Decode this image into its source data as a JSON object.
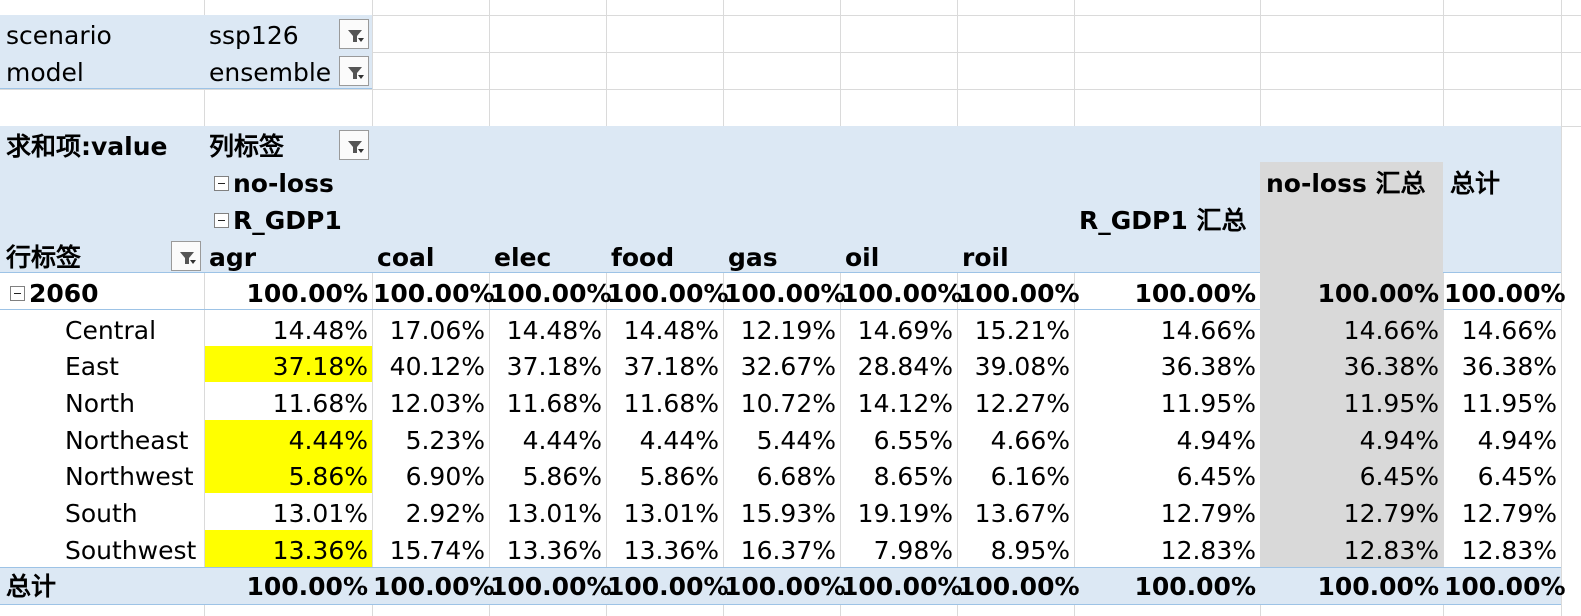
{
  "filters": [
    {
      "field": "scenario",
      "value": "ssp126"
    },
    {
      "field": "model",
      "value": "ensemble"
    }
  ],
  "pivot": {
    "value_label": "求和项:value",
    "column_labels": "列标签",
    "row_labels": "行标签",
    "level1": "no-loss",
    "level2": "R_GDP1",
    "columns": [
      "agr",
      "coal",
      "elec",
      "food",
      "gas",
      "oil",
      "roil"
    ],
    "subtotal_r_gdp1": "R_GDP1 汇总",
    "subtotal_noloss": "no-loss 汇总",
    "grand_total_col": "总计",
    "group": {
      "label": "2060",
      "values": [
        "100.00%",
        "100.00%",
        "100.00%",
        "100.00%",
        "100.00%",
        "100.00%",
        "100.00%",
        "100.00%",
        "100.00%",
        "100.00%"
      ]
    },
    "rows": [
      {
        "label": "Central",
        "values": [
          "14.48%",
          "17.06%",
          "14.48%",
          "14.48%",
          "12.19%",
          "14.69%",
          "15.21%",
          "14.66%",
          "14.66%",
          "14.66%"
        ],
        "highlight": false
      },
      {
        "label": "East",
        "values": [
          "37.18%",
          "40.12%",
          "37.18%",
          "37.18%",
          "32.67%",
          "28.84%",
          "39.08%",
          "36.38%",
          "36.38%",
          "36.38%"
        ],
        "highlight": true
      },
      {
        "label": "North",
        "values": [
          "11.68%",
          "12.03%",
          "11.68%",
          "11.68%",
          "10.72%",
          "14.12%",
          "12.27%",
          "11.95%",
          "11.95%",
          "11.95%"
        ],
        "highlight": false
      },
      {
        "label": "Northeast",
        "values": [
          "4.44%",
          "5.23%",
          "4.44%",
          "4.44%",
          "5.44%",
          "6.55%",
          "4.66%",
          "4.94%",
          "4.94%",
          "4.94%"
        ],
        "highlight": true
      },
      {
        "label": "Northwest",
        "values": [
          "5.86%",
          "6.90%",
          "5.86%",
          "5.86%",
          "6.68%",
          "8.65%",
          "6.16%",
          "6.45%",
          "6.45%",
          "6.45%"
        ],
        "highlight": true
      },
      {
        "label": "South",
        "values": [
          "13.01%",
          "2.92%",
          "13.01%",
          "13.01%",
          "15.93%",
          "19.19%",
          "13.67%",
          "12.79%",
          "12.79%",
          "12.79%"
        ],
        "highlight": false
      },
      {
        "label": "Southwest",
        "values": [
          "13.36%",
          "15.74%",
          "13.36%",
          "13.36%",
          "16.37%",
          "7.98%",
          "8.95%",
          "12.83%",
          "12.83%",
          "12.83%"
        ],
        "highlight": true
      }
    ],
    "grand_total": {
      "label": "总计",
      "values": [
        "100.00%",
        "100.00%",
        "100.00%",
        "100.00%",
        "100.00%",
        "100.00%",
        "100.00%",
        "100.00%",
        "100.00%",
        "100.00%"
      ]
    }
  },
  "colors": {
    "highlight": "#ffff00",
    "pivot_band": "#dce8f4",
    "subtotal_column": "#d9d9d9"
  },
  "icons": {
    "filter": "filter-dropdown-icon",
    "collapse": "collapse-minus-icon"
  }
}
